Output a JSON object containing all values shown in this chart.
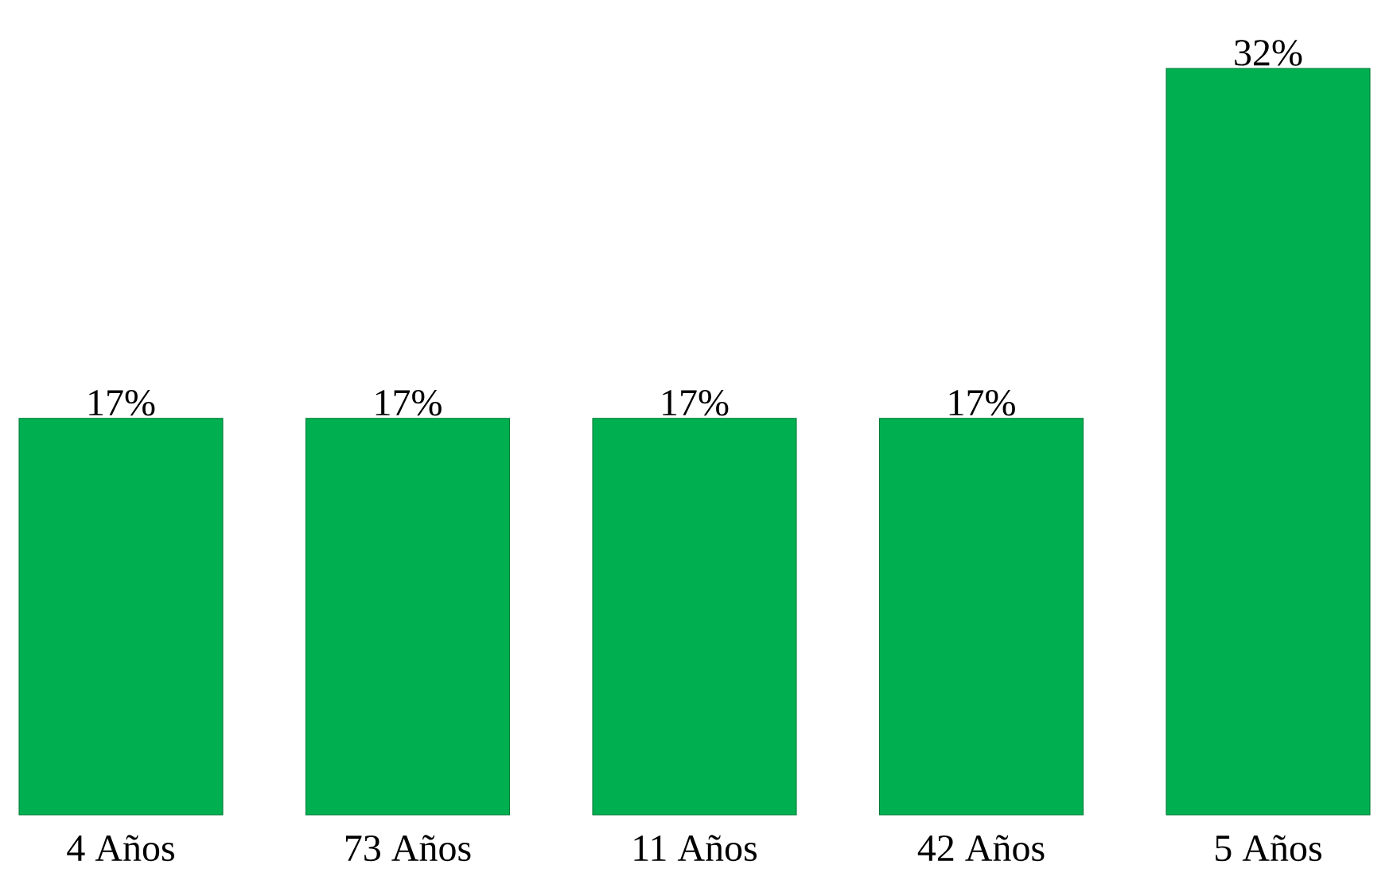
{
  "chart_data": {
    "type": "bar",
    "categories": [
      "4 Años",
      "73 Años",
      "11 Años",
      "42 Años",
      "5 Años"
    ],
    "values": [
      17,
      17,
      17,
      17,
      32
    ],
    "value_labels": [
      "17%",
      "17%",
      "17%",
      "17%",
      "32%"
    ],
    "color": "#00b050"
  }
}
